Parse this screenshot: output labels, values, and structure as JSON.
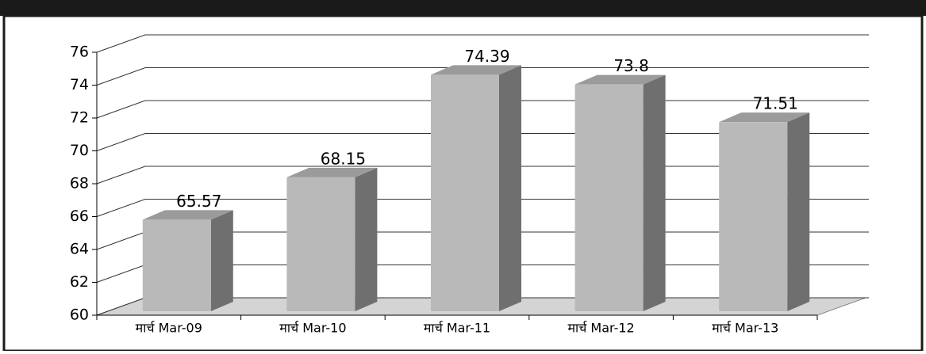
{
  "chart_data": {
    "type": "bar",
    "categories": [
      "मार्च Mar-09",
      "मार्च Mar-10",
      "मार्च Mar-11",
      "मार्च Mar-12",
      "मार्च Mar-13"
    ],
    "values": [
      65.57,
      68.15,
      74.39,
      73.8,
      71.51
    ],
    "color": "#b9b9b9",
    "ylim": [
      60,
      76
    ],
    "yticks": [
      60,
      62,
      64,
      66,
      68,
      70,
      72,
      74,
      76
    ],
    "grid": true
  }
}
